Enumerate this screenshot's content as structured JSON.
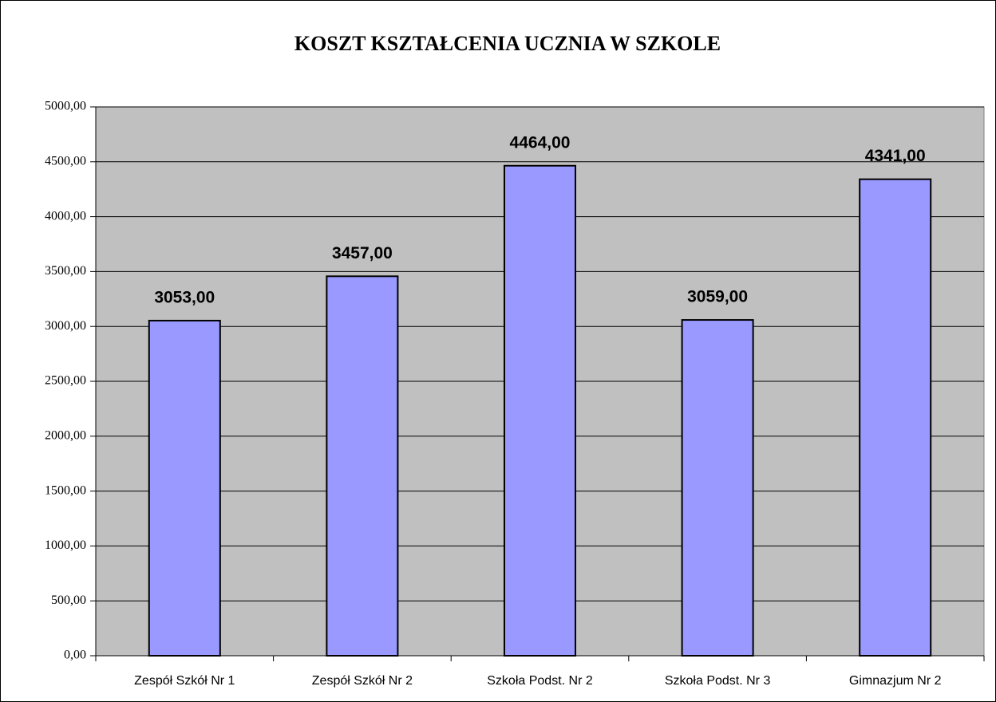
{
  "chart_data": {
    "type": "bar",
    "title": "KOSZT KSZTAŁCENIA UCZNIA W SZKOLE",
    "categories": [
      "Zespół Szkół Nr 1",
      "Zespół Szkół Nr 2",
      "Szkoła Podst. Nr 2",
      "Szkoła Podst. Nr 3",
      "Gimnazjum Nr 2"
    ],
    "values": [
      3053,
      3457,
      4464,
      3059,
      4341
    ],
    "value_labels": [
      "3053,00",
      "3457,00",
      "4464,00",
      "3059,00",
      "4341,00"
    ],
    "color": "#9999ff",
    "ylim": [
      0,
      5000
    ],
    "yticks": [
      {
        "value": 0,
        "label": "0,00"
      },
      {
        "value": 500,
        "label": "500,00"
      },
      {
        "value": 1000,
        "label": "1000,00"
      },
      {
        "value": 1500,
        "label": "1500,00"
      },
      {
        "value": 2000,
        "label": "2000,00"
      },
      {
        "value": 2500,
        "label": "2500,00"
      },
      {
        "value": 3000,
        "label": "3000,00"
      },
      {
        "value": 3500,
        "label": "3500,00"
      },
      {
        "value": 4000,
        "label": "4000,00"
      },
      {
        "value": 4500,
        "label": "4500,00"
      },
      {
        "value": 5000,
        "label": "5000,00"
      }
    ],
    "grid": true
  }
}
